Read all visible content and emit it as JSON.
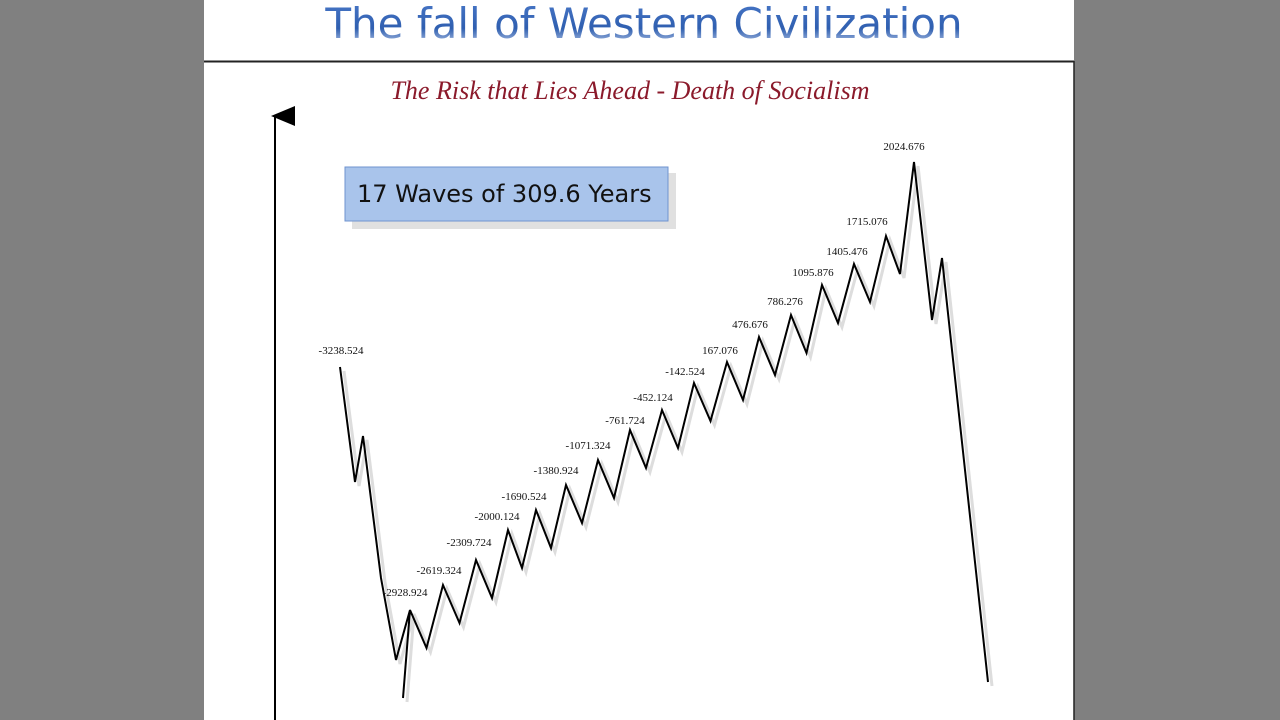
{
  "header": {
    "title": "The fall of Western Civilization"
  },
  "subtitle": "The Risk that Lies Ahead - Death of Socialism",
  "callout": "17 Waves of 309.6 Years",
  "labels": [
    "-3238.524",
    "-2928.924",
    "-2619.324",
    "-2309.724",
    "-2000.124",
    "-1690.524",
    "-1380.924",
    "-1071.324",
    "-761.724",
    "-452.124",
    "-142.524",
    "167.076",
    "476.676",
    "786.276",
    "1095.876",
    "1405.476",
    "1715.076",
    "2024.676"
  ]
}
